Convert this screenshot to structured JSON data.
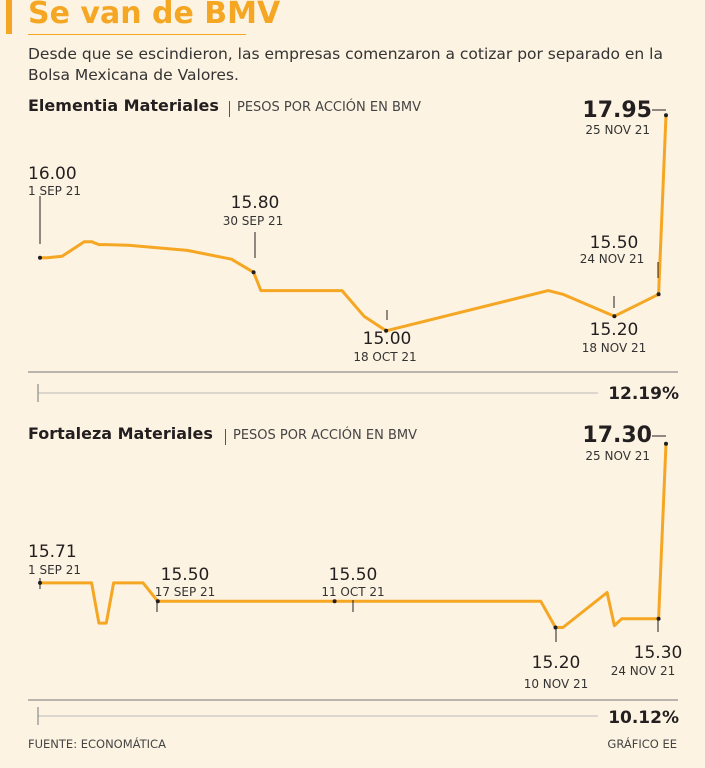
{
  "headline": "Se van de BMV",
  "deck": "Desde que se escindieron, las empresas comenzaron a cotizar por separado en la Bolsa Mexicana de Valores.",
  "colors": {
    "accent": "#f5a623",
    "line": "#f5a623",
    "text": "#231f20"
  },
  "chart_data": [
    {
      "type": "line",
      "title": "Elementia Materiales",
      "subtitle": "PESOS POR ACCIÓN EN BMV",
      "change": "12.19%",
      "y_range": [
        14.6,
        18.05
      ],
      "points": [
        {
          "x": "2021-09-01",
          "y": 16.0
        },
        {
          "x": "2021-09-02",
          "y": 16.0
        },
        {
          "x": "2021-09-04",
          "y": 16.02
        },
        {
          "x": "2021-09-07",
          "y": 16.22
        },
        {
          "x": "2021-09-08",
          "y": 16.22
        },
        {
          "x": "2021-09-09",
          "y": 16.18
        },
        {
          "x": "2021-09-10",
          "y": 16.18
        },
        {
          "x": "2021-09-13",
          "y": 16.17
        },
        {
          "x": "2021-09-21",
          "y": 16.1
        },
        {
          "x": "2021-09-27",
          "y": 15.98
        },
        {
          "x": "2021-09-30",
          "y": 15.8
        },
        {
          "x": "2021-10-01",
          "y": 15.55
        },
        {
          "x": "2021-10-12",
          "y": 15.55
        },
        {
          "x": "2021-10-15",
          "y": 15.2
        },
        {
          "x": "2021-10-18",
          "y": 15.0
        },
        {
          "x": "2021-11-09",
          "y": 15.55
        },
        {
          "x": "2021-11-11",
          "y": 15.5
        },
        {
          "x": "2021-11-18",
          "y": 15.2
        },
        {
          "x": "2021-11-24",
          "y": 15.5
        },
        {
          "x": "2021-11-25",
          "y": 17.95
        }
      ],
      "annotations": [
        {
          "value": "16.00",
          "date": "1 SEP 21",
          "x": "2021-09-01",
          "y": 16.0
        },
        {
          "value": "15.80",
          "date": "30 SEP 21",
          "x": "2021-09-30",
          "y": 15.8
        },
        {
          "value": "15.00",
          "date": "18 OCT 21",
          "x": "2021-10-18",
          "y": 15.0
        },
        {
          "value": "15.50",
          "date": "24 NOV 21",
          "x": "2021-11-24",
          "y": 15.5
        },
        {
          "value": "15.20",
          "date": "18 NOV 21",
          "x": "2021-11-18",
          "y": 15.2
        },
        {
          "value": "17.95",
          "date": "25 NOV 21",
          "x": "2021-11-25",
          "y": 17.95
        }
      ]
    },
    {
      "type": "line",
      "title": "Fortaleza Materiales",
      "subtitle": "PESOS POR ACCIÓN EN BMV",
      "change": "10.12%",
      "y_range": [
        14.6,
        17.4
      ],
      "points": [
        {
          "x": "2021-09-01",
          "y": 15.71
        },
        {
          "x": "2021-09-08",
          "y": 15.71
        },
        {
          "x": "2021-09-09",
          "y": 15.25
        },
        {
          "x": "2021-09-10",
          "y": 15.25
        },
        {
          "x": "2021-09-11",
          "y": 15.71
        },
        {
          "x": "2021-09-15",
          "y": 15.71
        },
        {
          "x": "2021-09-17",
          "y": 15.5
        },
        {
          "x": "2021-10-11",
          "y": 15.5
        },
        {
          "x": "2021-11-08",
          "y": 15.5
        },
        {
          "x": "2021-11-10",
          "y": 15.2
        },
        {
          "x": "2021-11-11",
          "y": 15.2
        },
        {
          "x": "2021-11-17",
          "y": 15.6
        },
        {
          "x": "2021-11-18",
          "y": 15.22
        },
        {
          "x": "2021-11-19",
          "y": 15.3
        },
        {
          "x": "2021-11-24",
          "y": 15.3
        },
        {
          "x": "2021-11-25",
          "y": 17.3
        }
      ],
      "annotations": [
        {
          "value": "15.71",
          "date": "1 SEP 21",
          "x": "2021-09-01",
          "y": 15.71
        },
        {
          "value": "15.50",
          "date": "17 SEP 21",
          "x": "2021-09-17",
          "y": 15.5
        },
        {
          "value": "15.50",
          "date": "11 OCT 21",
          "x": "2021-10-11",
          "y": 15.5
        },
        {
          "value": "15.20",
          "date": "10 NOV 21",
          "x": "2021-11-10",
          "y": 15.2
        },
        {
          "value": "15.30",
          "date": "24 NOV 21",
          "x": "2021-11-24",
          "y": 15.3
        },
        {
          "value": "17.30",
          "date": "25 NOV 21",
          "x": "2021-11-25",
          "y": 17.3
        }
      ]
    }
  ],
  "footer": {
    "source": "FUENTE: ECONOMÁTICA",
    "credit": "GRÁFICO EE"
  }
}
